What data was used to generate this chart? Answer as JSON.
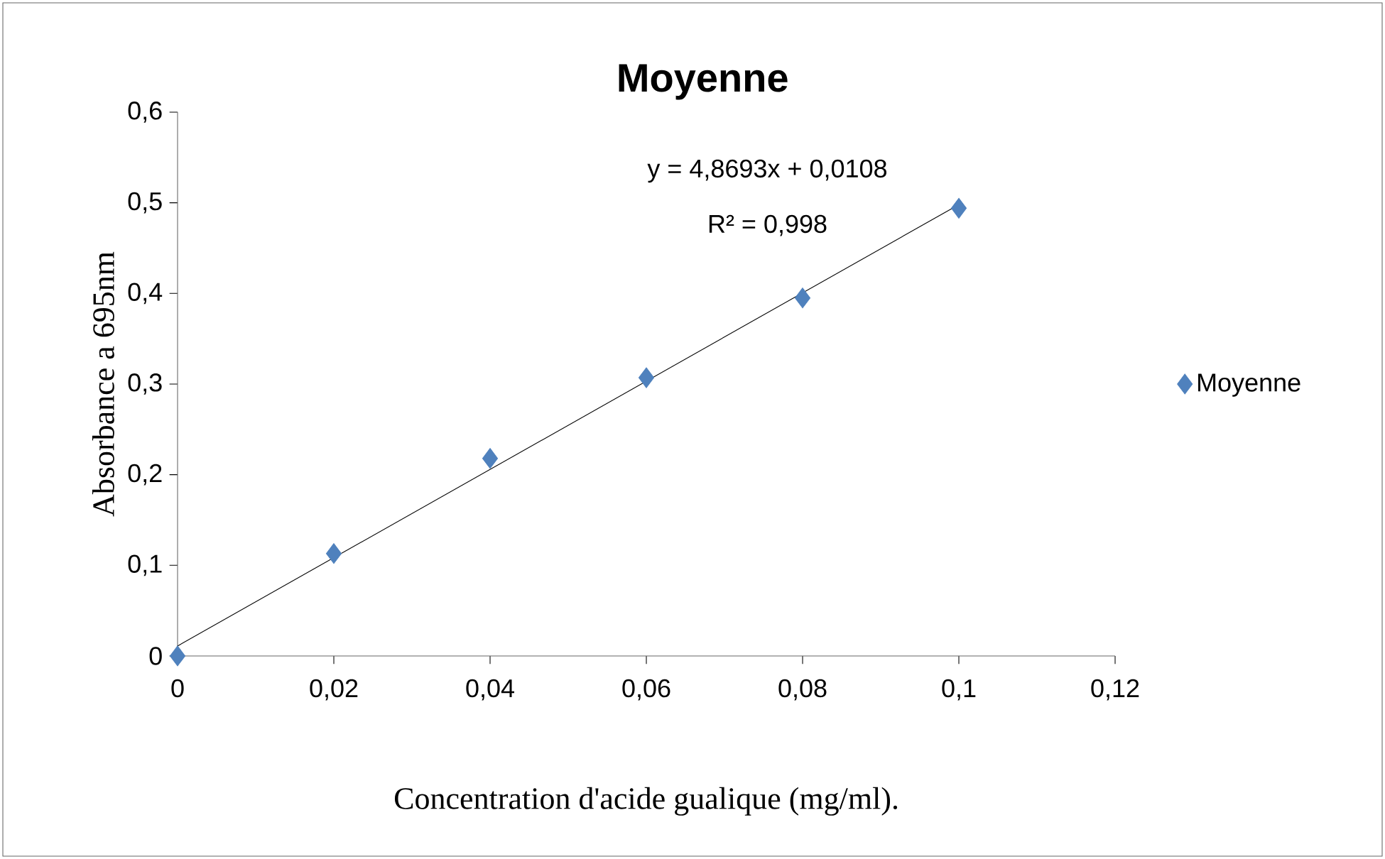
{
  "chart_data": {
    "type": "scatter",
    "title": "Moyenne",
    "xlabel": "Concentration d'acide gualique (mg/ml).",
    "ylabel": "Absorbance a 695nm",
    "x": [
      0,
      0.02,
      0.04,
      0.06,
      0.08,
      0.1
    ],
    "series": [
      {
        "name": "Moyenne",
        "color": "#4f81bd",
        "values": [
          0,
          0.113,
          0.218,
          0.307,
          0.395,
          0.494
        ]
      },
      {
        "type": "line",
        "marker": "none",
        "color": "#000000",
        "x": [
          0,
          0.1
        ],
        "values": [
          0.011,
          0.498
        ]
      }
    ],
    "xlim": [
      0,
      0.12
    ],
    "ylim": [
      0,
      0.6
    ],
    "xticks": [
      0,
      {
        "value": 0.02,
        "label": "0,02"
      },
      {
        "value": 0.04,
        "label": "0,04"
      },
      {
        "value": 0.06,
        "label": "0,06"
      },
      {
        "value": 0.08,
        "label": "0,08"
      },
      {
        "value": 0.1,
        "label": "0,1"
      },
      {
        "value": 0.12,
        "label": "0,12"
      }
    ],
    "yticks": [
      0,
      {
        "value": 0.1,
        "label": "0,1"
      },
      {
        "value": 0.2,
        "label": "0,2"
      },
      {
        "value": 0.3,
        "label": "0,3"
      },
      {
        "value": 0.4,
        "label": "0,4"
      },
      {
        "value": 0.5,
        "label": "0,5"
      },
      {
        "value": 0.6,
        "label": "0,6"
      }
    ],
    "marker": "diamond",
    "legend": "right",
    "grid": false,
    "annotations": [
      "y = 4,8693x + 0,0108",
      "R² = 0,998"
    ]
  }
}
